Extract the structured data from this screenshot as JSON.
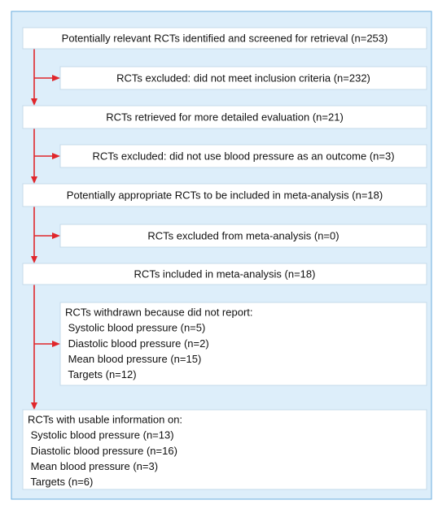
{
  "nodes": [
    {
      "lines": [
        "Potentially relevant RCTs identified and screened for retrieval (n=253)"
      ]
    },
    {
      "lines": [
        "RCTs excluded: did not meet inclusion criteria (n=232)"
      ]
    },
    {
      "lines": [
        "RCTs retrieved for more detailed evaluation (n=21)"
      ]
    },
    {
      "lines": [
        "RCTs excluded: did not use blood pressure as an outcome (n=3)"
      ]
    },
    {
      "lines": [
        "Potentially appropriate RCTs to be included in meta-analysis (n=18)"
      ]
    },
    {
      "lines": [
        "RCTs excluded from meta-analysis (n=0)"
      ]
    },
    {
      "lines": [
        "RCTs included in meta-analysis (n=18)"
      ]
    },
    {
      "lines": [
        "RCTs withdrawn because did not report:",
        " Systolic blood pressure (n=5)",
        " Diastolic blood pressure (n=2)",
        " Mean blood pressure (n=15)",
        " Targets (n=12)"
      ]
    },
    {
      "lines": [
        "RCTs with usable information on:",
        " Systolic blood pressure (n=13)",
        " Diastolic blood pressure (n=16)",
        " Mean blood pressure (n=3)",
        " Targets (n=6)"
      ]
    }
  ]
}
